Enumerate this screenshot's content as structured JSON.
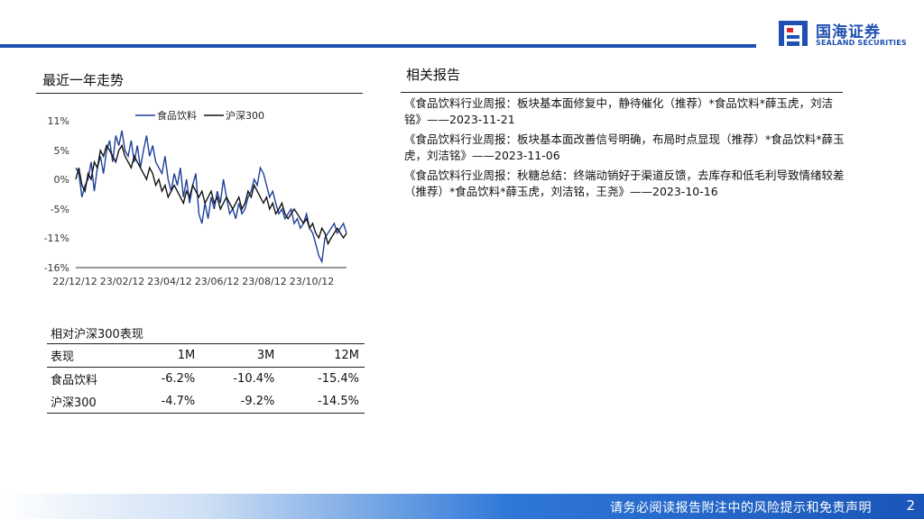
{
  "brand": {
    "name_cn": "国海证券",
    "name_en": "SEALAND SECURITIES",
    "color": "#1f4fb0"
  },
  "left_section": {
    "title": "最近一年走势"
  },
  "right_section": {
    "title": "相关报告"
  },
  "chart_data": {
    "type": "line",
    "x_tick_labels": [
      "22/12/12",
      "23/02/12",
      "23/04/12",
      "23/06/12",
      "23/08/12",
      "23/10/12"
    ],
    "y_tick_labels": [
      "11%",
      "5%",
      "0%",
      "-5%",
      "-11%",
      "-16%"
    ],
    "ylim": [
      -16,
      11
    ],
    "grid": false,
    "legend_position": "top",
    "series": [
      {
        "name": "食品饮料",
        "color": "#1f3f99",
        "values": [
          2,
          1,
          -3,
          -1,
          0,
          3,
          -2,
          2,
          4,
          1,
          5,
          7,
          3,
          8,
          6,
          9,
          5,
          4,
          7,
          3,
          6,
          2,
          5,
          8,
          4,
          6,
          3,
          2,
          1,
          4,
          0,
          -2,
          1,
          -1,
          2,
          -3,
          0,
          -4,
          -1,
          1,
          -6,
          -8,
          -4,
          -7,
          -3,
          -5,
          -2,
          -4,
          0,
          -3,
          -6,
          -5,
          -7,
          -4,
          -6,
          -5,
          -3,
          -2,
          0,
          -1,
          2,
          1,
          -1,
          -3,
          -2,
          -4,
          -6,
          -5,
          -7,
          -6,
          -5,
          -8,
          -7,
          -9,
          -8,
          -6,
          -9,
          -10,
          -12,
          -14,
          -15,
          -11,
          -10,
          -9,
          -8,
          -10,
          -9,
          -8,
          -10
        ]
      },
      {
        "name": "沪深300",
        "color": "#111111",
        "values": [
          0,
          2,
          -1,
          -2,
          1,
          0,
          3,
          2,
          5,
          4,
          6,
          5,
          4,
          3,
          5,
          6,
          4,
          3,
          2,
          4,
          3,
          2,
          1,
          0,
          2,
          1,
          -1,
          0,
          -2,
          -1,
          -3,
          -2,
          -1,
          -2,
          -3,
          -4,
          -2,
          -3,
          -1,
          -2,
          -3,
          -2,
          -4,
          -3,
          -2,
          -4,
          -3,
          -5,
          -4,
          -3,
          -4,
          -5,
          -4,
          -3,
          -5,
          -4,
          -2,
          -3,
          -1,
          -2,
          -3,
          -4,
          -3,
          -5,
          -4,
          -6,
          -5,
          -4,
          -6,
          -7,
          -6,
          -5,
          -6,
          -7,
          -8,
          -7,
          -9,
          -8,
          -10,
          -11,
          -9,
          -10,
          -12,
          -11,
          -10,
          -9,
          -10,
          -11,
          -10
        ]
      }
    ]
  },
  "performance_table": {
    "title": "相对沪深300表现",
    "headers": [
      "表现",
      "1M",
      "3M",
      "12M"
    ],
    "rows": [
      [
        "食品饮料",
        "-6.2%",
        "-10.4%",
        "-15.4%"
      ],
      [
        "沪深300",
        "-4.7%",
        "-9.2%",
        "-14.5%"
      ]
    ]
  },
  "reports": [
    "《食品饮料行业周报：板块基本面修复中，静待催化（推荐）*食品饮料*薛玉虎，刘洁铭》——2023-11-21",
    "《食品饮料行业周报：板块基本面改善信号明确，布局时点显现（推荐）*食品饮料*薛玉虎，刘洁铭》——2023-11-06",
    "《食品饮料行业周报：秋糖总结：终端动销好于渠道反馈，去库存和低毛利导致情绪较差（推荐）*食品饮料*薛玉虎，刘洁铭，王尧》——2023-10-16"
  ],
  "footer": {
    "disclaimer": "请务必阅读报告附注中的风险提示和免责声明",
    "page": "2"
  }
}
